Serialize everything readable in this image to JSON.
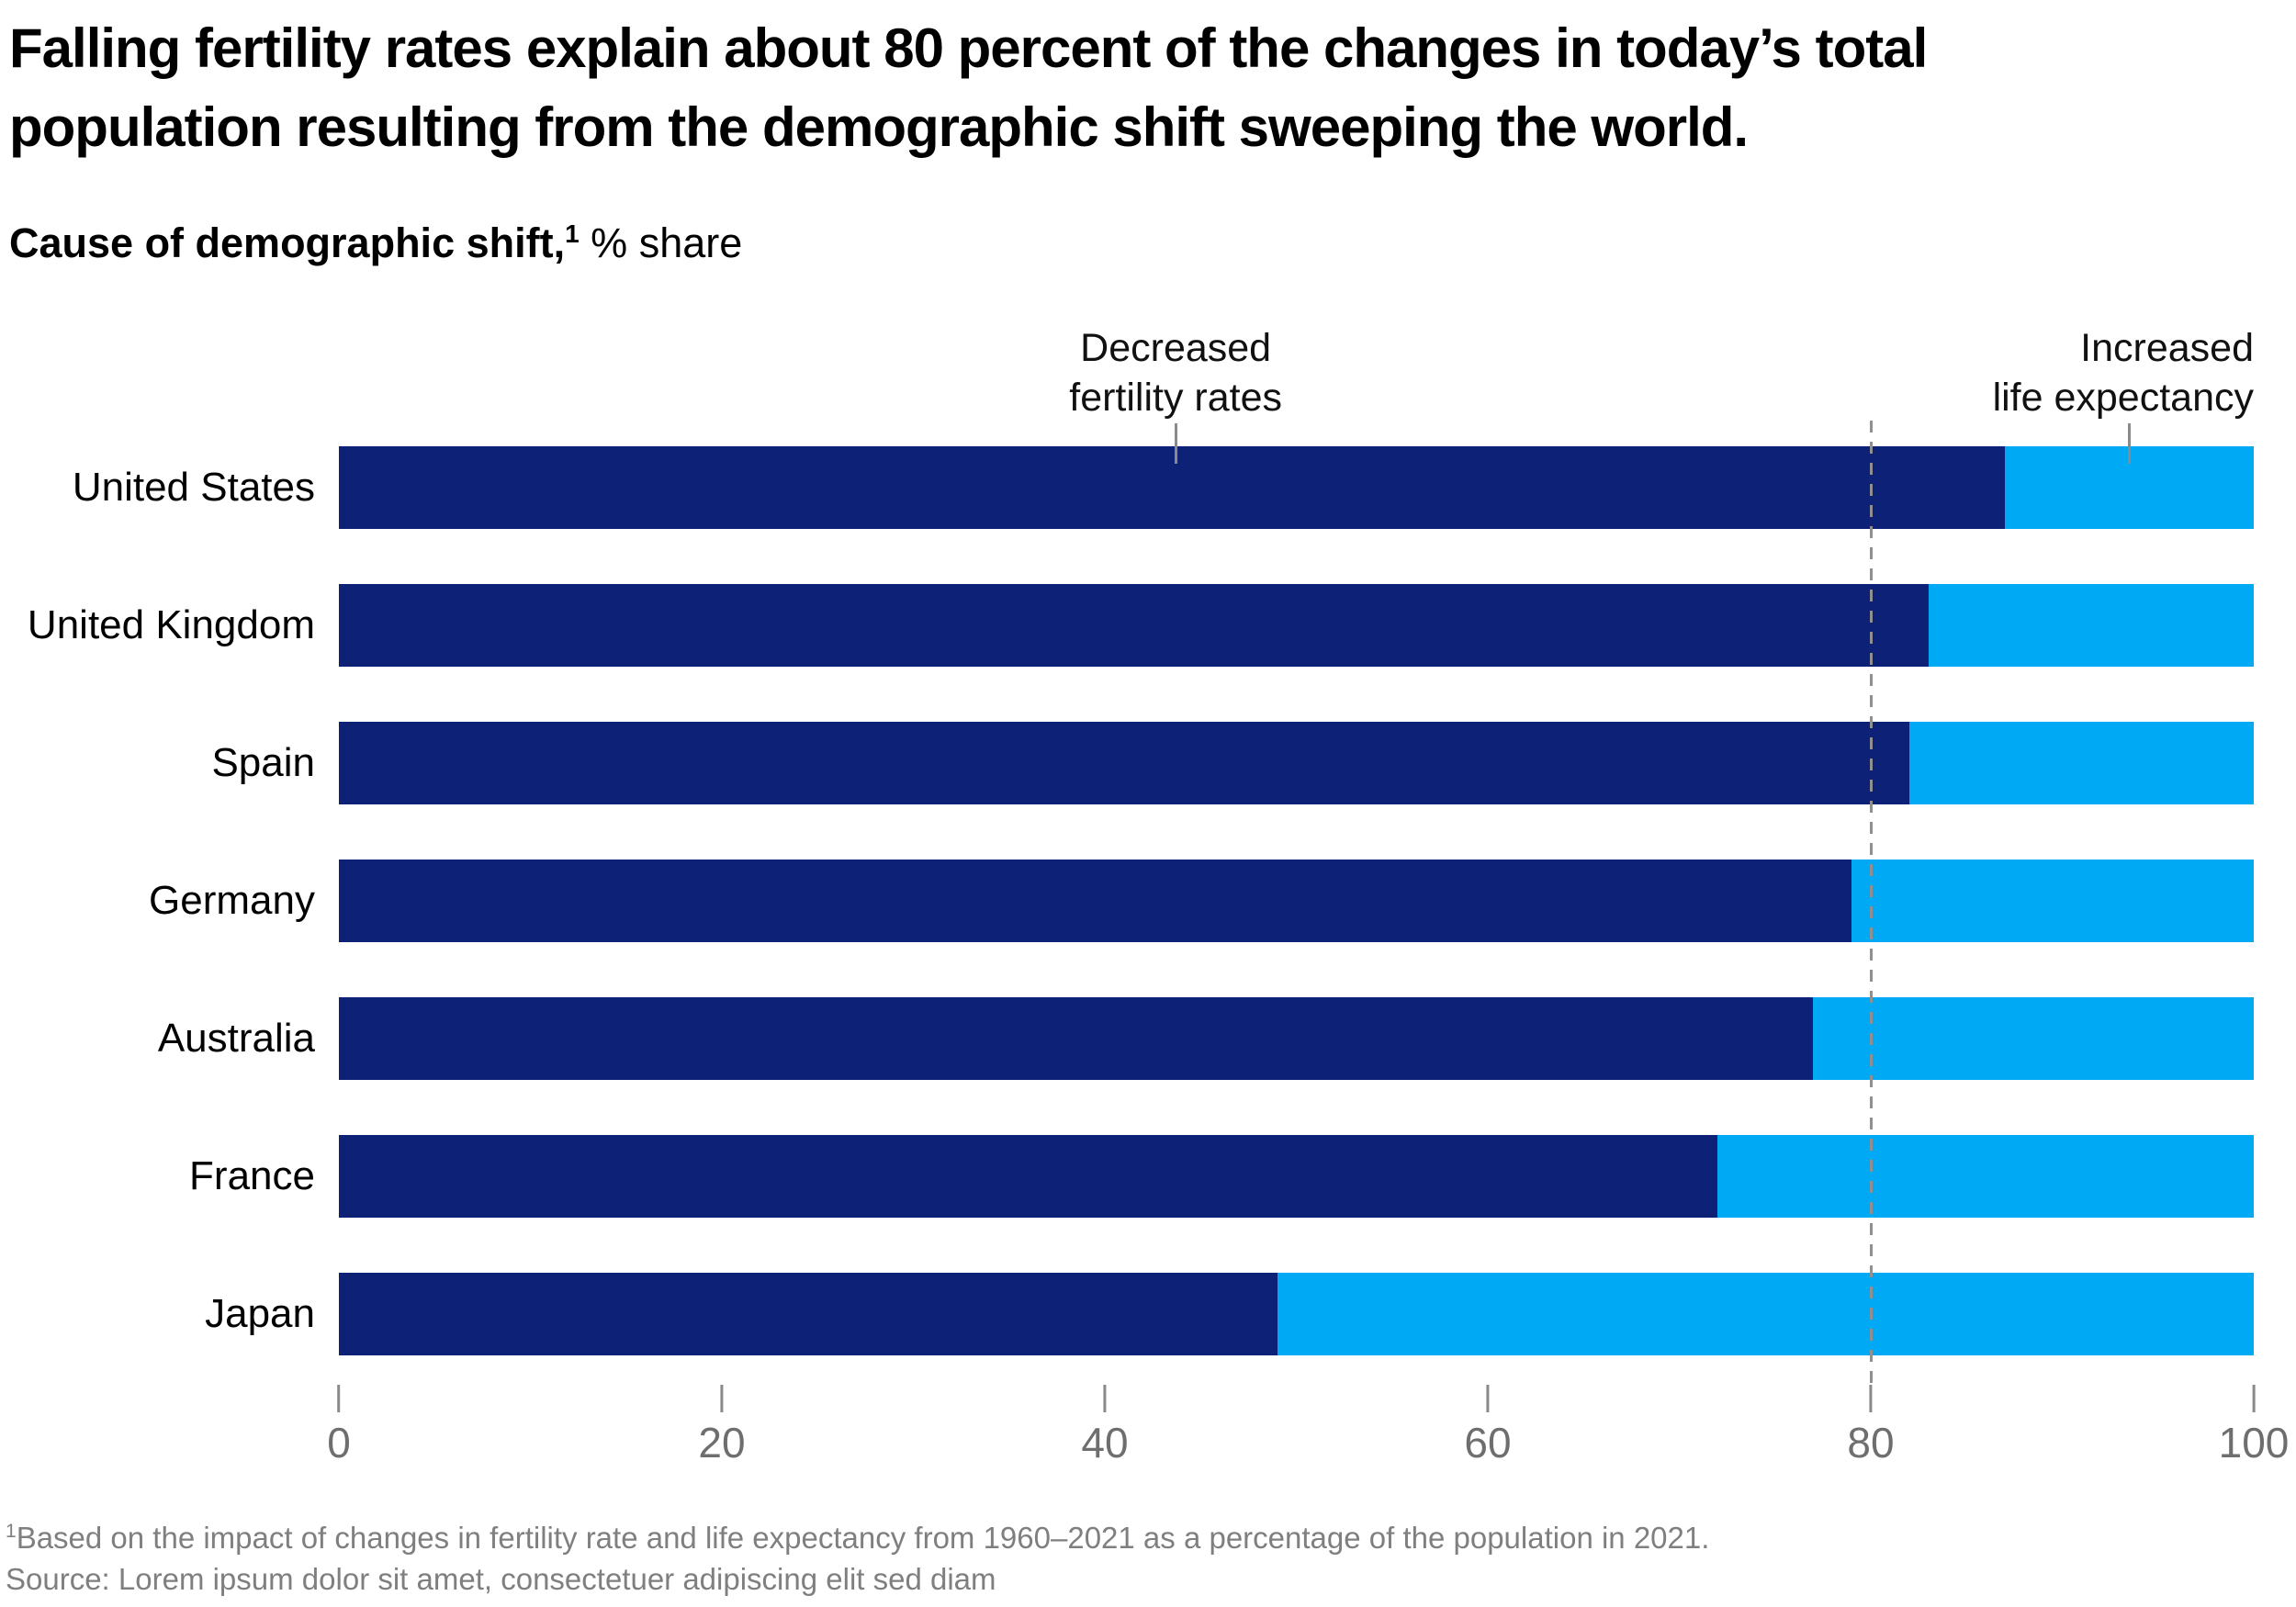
{
  "title": {
    "lines": [
      "Falling fertility rates explain about 80 percent of the changes in today’s total",
      "population resulting from the demographic shift sweeping the world."
    ]
  },
  "subtitle": {
    "bold": "Cause of demographic shift,",
    "footnote_marker": "1",
    "regular": " % share"
  },
  "annotations": {
    "fertility_lines": [
      "Decreased",
      "fertility rates"
    ],
    "life_lines": [
      "Increased",
      "life expectancy"
    ]
  },
  "chart_data": {
    "type": "bar",
    "orientation": "horizontal",
    "stacked": true,
    "title": "Cause of demographic shift, % share",
    "categories": [
      "United States",
      "United Kingdom",
      "Spain",
      "Germany",
      "Australia",
      "France",
      "Japan"
    ],
    "series": [
      {
        "name": "Decreased fertility rates",
        "color": "#0d2177",
        "values": [
          87,
          83,
          82,
          79,
          77,
          72,
          49
        ]
      },
      {
        "name": "Increased life expectancy",
        "color": "#00a9f4",
        "values": [
          13,
          17,
          18,
          21,
          23,
          28,
          51
        ]
      }
    ],
    "x_axis": {
      "ticks": [
        0,
        20,
        40,
        60,
        80,
        100
      ],
      "range": [
        0,
        100
      ]
    },
    "reference_line": {
      "value": 80,
      "style": "dashed"
    },
    "legend_position": "above-bars",
    "grid": false
  },
  "footnotes": {
    "note_marker": "1",
    "note": "Based on the impact of changes in fertility rate and life expectancy from 1960–2021 as a percentage of the population in 2021.",
    "source": "Source: Lorem ipsum dolor sit amet, consectetuer adipiscing elit sed diam"
  },
  "colors": {
    "navy": "#0d2177",
    "cyan": "#00a9f4",
    "axis_text": "#6e6e6e",
    "footnote_text": "#7f7f7f",
    "tick_gray": "#8a8a8a"
  }
}
